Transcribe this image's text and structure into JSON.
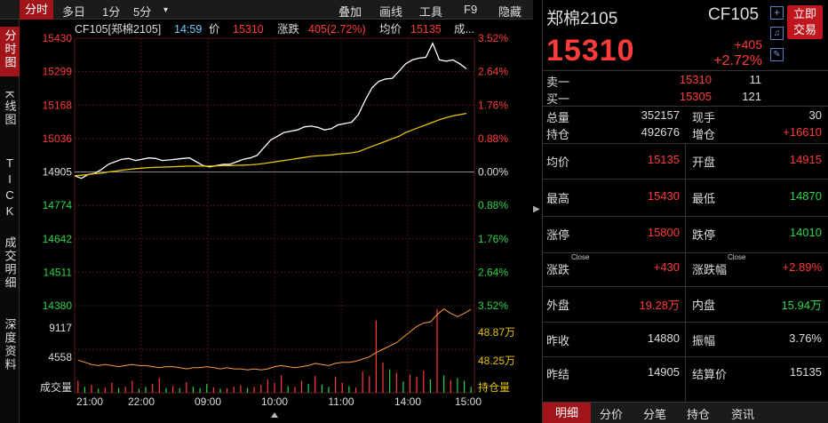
{
  "toolbar": {
    "tabs": [
      "分时",
      "多日",
      "1分",
      "5分"
    ],
    "dropdown_glyph": "▾",
    "menu": [
      "叠加",
      "画线",
      "工具",
      "F9",
      "隐藏"
    ]
  },
  "leftnav": [
    "分时图",
    "K线图",
    "TICK",
    "成交明细",
    "深度资料"
  ],
  "chart_data": {
    "type": "line",
    "header": {
      "symbol": "CF105[郑棉2105]",
      "time": "14:59",
      "price_label": "价",
      "price": "15310",
      "change_label": "涨跌",
      "change": "405(2.72%)",
      "avg_label": "均价",
      "avg": "15135",
      "more": "成..."
    },
    "price_ticks": [
      "15430",
      "15299",
      "15168",
      "15036",
      "14905",
      "14774",
      "14642",
      "14511",
      "14380"
    ],
    "pct_ticks": [
      "3.52%",
      "2.64%",
      "1.76%",
      "0.88%",
      "0.00%",
      "0.88%",
      "1.76%",
      "2.64%",
      "3.52%"
    ],
    "ylim": [
      14380,
      15430
    ],
    "prev_settle": 14905,
    "x_labels": [
      "21:00",
      "22:00",
      "09:00",
      "10:00",
      "11:00",
      "14:00",
      "15:00"
    ],
    "series": [
      {
        "values": [
          14890,
          14880,
          14895,
          14900,
          14915,
          14935,
          14945,
          14955,
          14958,
          14950,
          14955,
          14960,
          14958,
          14950,
          14952,
          14955,
          14958,
          14960,
          14945,
          14930,
          14925,
          14930,
          14935,
          14935,
          14945,
          14955,
          14960,
          14970,
          15000,
          15030,
          15045,
          15060,
          15065,
          15070,
          15082,
          15085,
          15080,
          15070,
          15075,
          15090,
          15095,
          15100,
          15130,
          15185,
          15235,
          15260,
          15270,
          15272,
          15300,
          15330,
          15345,
          15352,
          15355,
          15410,
          15345,
          15340,
          15345,
          15330,
          15310
        ]
      },
      {
        "values": [
          14890,
          14892,
          14895,
          14898,
          14900,
          14905,
          14908,
          14912,
          14915,
          14918,
          14920,
          14922,
          14923,
          14924,
          14925,
          14926,
          14927,
          14928,
          14928,
          14928,
          14928,
          14929,
          14930,
          14930,
          14931,
          14932,
          14933,
          14935,
          14938,
          14942,
          14946,
          14950,
          14954,
          14958,
          14962,
          14966,
          14968,
          14970,
          14972,
          14975,
          14978,
          14980,
          14985,
          14995,
          15005,
          15015,
          15025,
          15035,
          15045,
          15060,
          15070,
          15080,
          15090,
          15100,
          15110,
          15118,
          15125,
          15130,
          15135
        ]
      }
    ],
    "volume": {
      "label": "成交量",
      "ticks": [
        "9117",
        "4558"
      ],
      "oi_ticks": [
        "48.87万",
        "48.25万"
      ],
      "oi_label": "持仓量",
      "ylim": [
        0,
        13000
      ],
      "values": [
        1800,
        900,
        1200,
        600,
        800,
        1500,
        700,
        900,
        1800,
        600,
        900,
        1300,
        2200,
        700,
        1000,
        700,
        1600,
        900,
        700,
        1300,
        800,
        600,
        700,
        900,
        1100,
        700,
        900,
        1200,
        2000,
        1500,
        2600,
        1000,
        900,
        1800,
        1300,
        2500,
        1200,
        900,
        2400,
        1500,
        1000,
        800,
        3200,
        2500,
        10800,
        4500,
        3500,
        3000,
        1700,
        2700,
        2400,
        3300,
        2000,
        12500,
        2600,
        1900,
        2200,
        1800,
        900
      ],
      "directions": [
        1,
        -1,
        1,
        -1,
        1,
        1,
        -1,
        1,
        1,
        -1,
        -1,
        1,
        1,
        -1,
        1,
        -1,
        1,
        -1,
        -1,
        -1,
        1,
        -1,
        1,
        1,
        1,
        -1,
        1,
        1,
        1,
        1,
        1,
        -1,
        1,
        1,
        -1,
        1,
        -1,
        -1,
        1,
        1,
        -1,
        1,
        1,
        1,
        1,
        1,
        -1,
        1,
        -1,
        1,
        1,
        1,
        -1,
        1,
        -1,
        1,
        -1,
        -1,
        -1
      ],
      "oi_line": [
        488000,
        487800,
        487600,
        487500,
        487600,
        487500,
        487400,
        487500,
        487600,
        487500,
        487500,
        487400,
        487300,
        487400,
        487400,
        487300,
        487200,
        487300,
        487300,
        487400,
        487300,
        487200,
        487300,
        487200,
        487200,
        487100,
        487200,
        487100,
        487200,
        487400,
        487500,
        487400,
        487300,
        487400,
        487500,
        487700,
        487600,
        487500,
        487700,
        487800,
        487800,
        487900,
        488100,
        488300,
        488700,
        489000,
        489300,
        489600,
        490100,
        490600,
        491100,
        491400,
        491500,
        492200,
        492700,
        492300,
        492000,
        492300,
        492676
      ],
      "oi_ylim": [
        485000,
        493000
      ]
    },
    "colors": {
      "price_line": "#ffffff",
      "avg_line": "#e6c400",
      "oi_line": "#ff9b3b",
      "up": "#ff3b3b",
      "down": "#2bd44b"
    }
  },
  "quote": {
    "name": "郑棉2105",
    "code": "CF105",
    "trade_button": "立即交易",
    "trade_line1": "立即",
    "trade_line2": "交易",
    "price": "15310",
    "change": "+405",
    "pct": "+2.72%",
    "sell1_label": "卖一",
    "sell1_price": "15310",
    "sell1_vol": "11",
    "buy1_label": "买一",
    "buy1_price": "15305",
    "buy1_vol": "121",
    "total_label": "总量",
    "total": "352157",
    "now_label": "现手",
    "now": "30",
    "oi_label": "持仓",
    "oi": "492676",
    "oi_add_label": "增仓",
    "oi_add": "+16610",
    "avg_label": "均价",
    "avg": "15135",
    "open_label": "开盘",
    "open": "14915",
    "high_label": "最高",
    "high": "15430",
    "low_label": "最低",
    "low": "14870",
    "limit_up_label": "涨停",
    "limit_up": "15800",
    "limit_down_label": "跌停",
    "limit_down": "14010",
    "chg_label": "涨跌",
    "chg": "+430",
    "chg_pct_label": "涨跌幅",
    "chg_pct": "+2.89%",
    "close_tag": "Close",
    "outer_label": "外盘",
    "outer": "19.28万",
    "inner_label": "内盘",
    "inner": "15.94万",
    "prev_close_label": "昨收",
    "prev_close": "14880",
    "amp_label": "振幅",
    "amp": "3.76%",
    "prev_settle_label": "昨结",
    "prev_settle": "14905",
    "settle_label": "结算价",
    "settle": "15135"
  },
  "right_tabs": [
    "明细",
    "分价",
    "分笔",
    "持仓",
    "资讯"
  ]
}
